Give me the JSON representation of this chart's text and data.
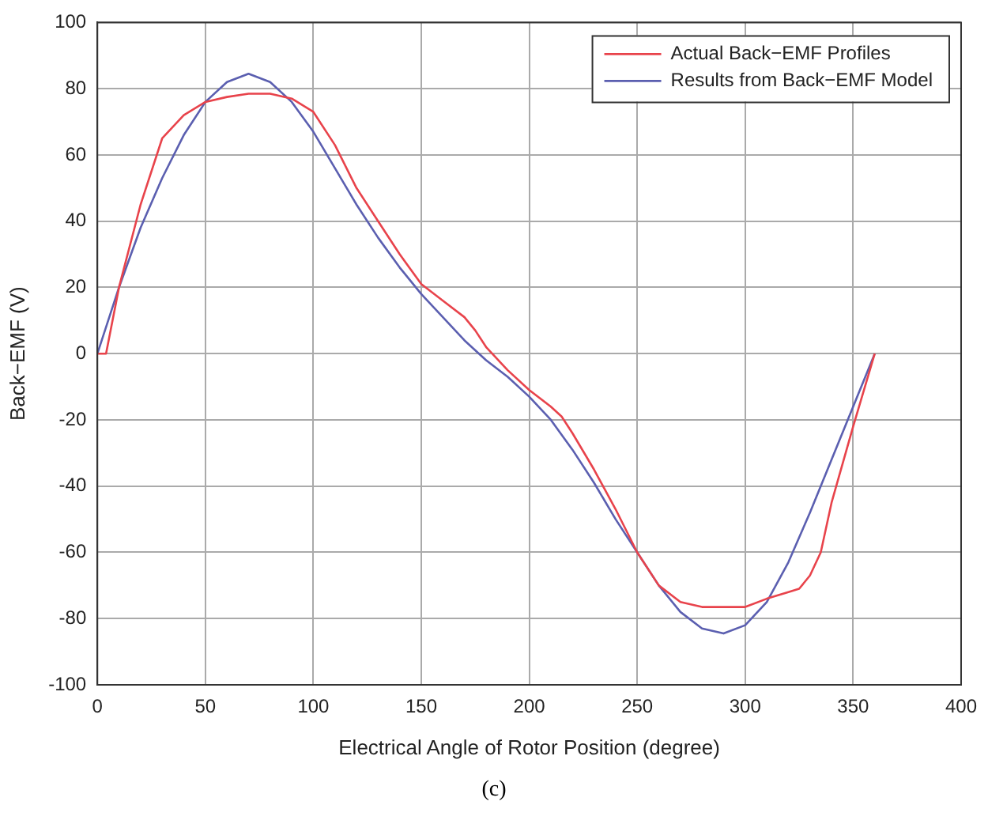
{
  "chart_data": {
    "type": "line",
    "xlabel": "Electrical Angle of Rotor Position (degree)",
    "ylabel": "Back−EMF (V)",
    "xlim": [
      0,
      400
    ],
    "xticks": [
      0,
      50,
      100,
      150,
      200,
      250,
      300,
      350,
      400
    ],
    "ylim": [
      -100,
      100
    ],
    "yticks": [
      -100,
      -80,
      -60,
      -40,
      -20,
      0,
      20,
      40,
      60,
      80,
      100
    ],
    "grid": true,
    "legend": "top right",
    "marker": "none",
    "line_style": "solid",
    "annotations": [
      "(c)"
    ],
    "series": [
      {
        "name": "Actual Back−EMF Profiles",
        "color": "#e8434b",
        "x": [
          0,
          4,
          10,
          20,
          30,
          40,
          50,
          60,
          70,
          80,
          90,
          100,
          110,
          120,
          130,
          140,
          150,
          160,
          170,
          175,
          180,
          190,
          200,
          210,
          215,
          220,
          230,
          240,
          250,
          260,
          270,
          280,
          290,
          300,
          310,
          320,
          325,
          330,
          335,
          340,
          350,
          360
        ],
        "values": [
          0,
          0,
          20,
          45,
          65,
          72,
          76,
          77.5,
          78.5,
          78.5,
          77,
          73,
          63,
          50,
          40,
          30,
          21,
          16,
          11,
          7,
          2,
          -5,
          -11,
          -16,
          -19,
          -24,
          -35,
          -47,
          -60,
          -70,
          -75,
          -76.5,
          -76.5,
          -76.5,
          -74,
          -72,
          -71,
          -67,
          -60,
          -45,
          -22,
          0
        ]
      },
      {
        "name": "Results from Back−EMF Model",
        "color": "#5b5fb0",
        "x": [
          0,
          10,
          20,
          30,
          40,
          50,
          60,
          70,
          80,
          90,
          100,
          110,
          120,
          130,
          140,
          150,
          160,
          170,
          180,
          190,
          200,
          210,
          220,
          230,
          240,
          250,
          260,
          270,
          280,
          290,
          300,
          310,
          320,
          330,
          340,
          350,
          360
        ],
        "values": [
          0,
          20,
          38,
          53,
          66,
          76,
          82,
          84.5,
          82,
          76,
          67,
          56,
          45,
          35,
          26,
          18,
          11,
          4,
          -2,
          -7,
          -13,
          -20,
          -29,
          -39,
          -50,
          -60,
          -70,
          -78,
          -83,
          -84.5,
          -82,
          -75,
          -63,
          -48,
          -32,
          -16,
          0
        ]
      }
    ]
  }
}
